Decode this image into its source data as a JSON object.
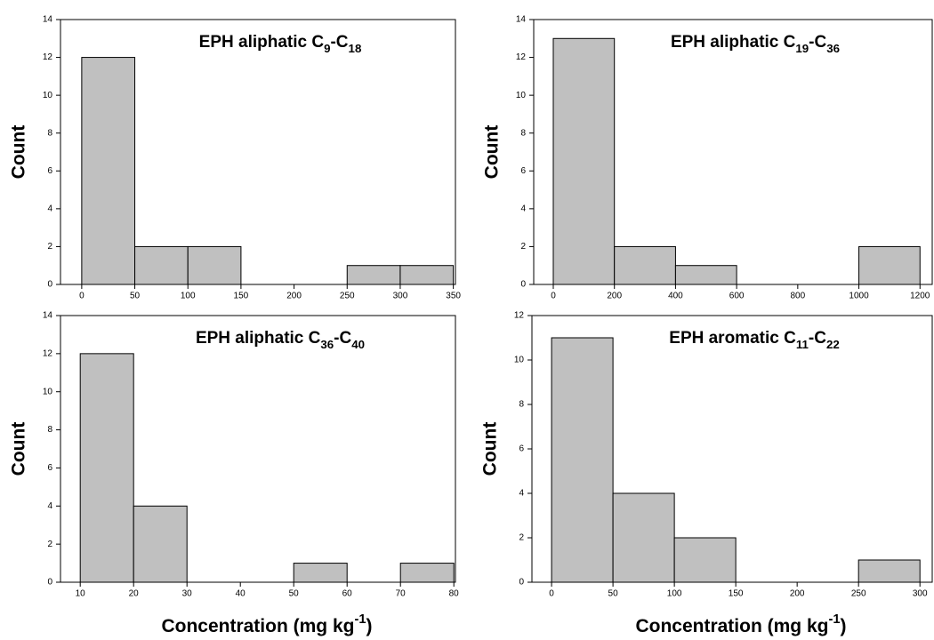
{
  "chart_data": [
    {
      "type": "histogram",
      "title": "EPH aliphatic C9-C18",
      "ylabel": "Count",
      "bins": [
        0,
        50,
        100,
        150,
        200,
        250,
        300,
        350
      ],
      "values": [
        12,
        2,
        2,
        0,
        0,
        1,
        1
      ],
      "color": "#c0c0c0",
      "xlim": [
        -20,
        352
      ],
      "xticks": [
        0,
        50,
        100,
        150,
        200,
        250,
        300,
        350
      ],
      "ylim": [
        0,
        14
      ],
      "yticks": [
        0,
        2,
        4,
        6,
        8,
        10,
        12,
        14
      ]
    },
    {
      "type": "histogram",
      "title": "EPH aliphatic C19-C36",
      "ylabel": "Count",
      "bins": [
        0,
        200,
        400,
        600,
        800,
        1000,
        1200
      ],
      "values": [
        13,
        2,
        1,
        0,
        0,
        2
      ],
      "color": "#c0c0c0",
      "xlim": [
        -64,
        1240
      ],
      "xticks": [
        0,
        200,
        400,
        600,
        800,
        1000,
        1200
      ],
      "ylim": [
        0,
        14
      ],
      "yticks": [
        0,
        2,
        4,
        6,
        8,
        10,
        12,
        14
      ]
    },
    {
      "type": "histogram",
      "title": "EPH aliphatic C36-C40",
      "ylabel": "Count",
      "xlabel": "Concentration (mg kg-1)",
      "bins": [
        10,
        20,
        30,
        40,
        50,
        60,
        70,
        80
      ],
      "values": [
        12,
        4,
        0,
        0,
        1,
        0,
        1
      ],
      "color": "#c0c0c0",
      "xlim": [
        6.3,
        80.3
      ],
      "xticks": [
        10,
        20,
        30,
        40,
        50,
        60,
        70,
        80
      ],
      "ylim": [
        0,
        14
      ],
      "yticks": [
        0,
        2,
        4,
        6,
        8,
        10,
        12,
        14
      ]
    },
    {
      "type": "histogram",
      "title": "EPH aromatic C11-C22",
      "ylabel": "Count",
      "xlabel": "Concentration (mg kg-1)",
      "bins": [
        0,
        50,
        100,
        150,
        200,
        250,
        300
      ],
      "values": [
        11,
        4,
        2,
        0,
        0,
        1
      ],
      "color": "#c0c0c0",
      "xlim": [
        -16,
        310
      ],
      "xticks": [
        0,
        50,
        100,
        150,
        200,
        250,
        300
      ],
      "ylim": [
        0,
        12
      ],
      "yticks": [
        0,
        2,
        4,
        6,
        8,
        10,
        12
      ]
    }
  ]
}
